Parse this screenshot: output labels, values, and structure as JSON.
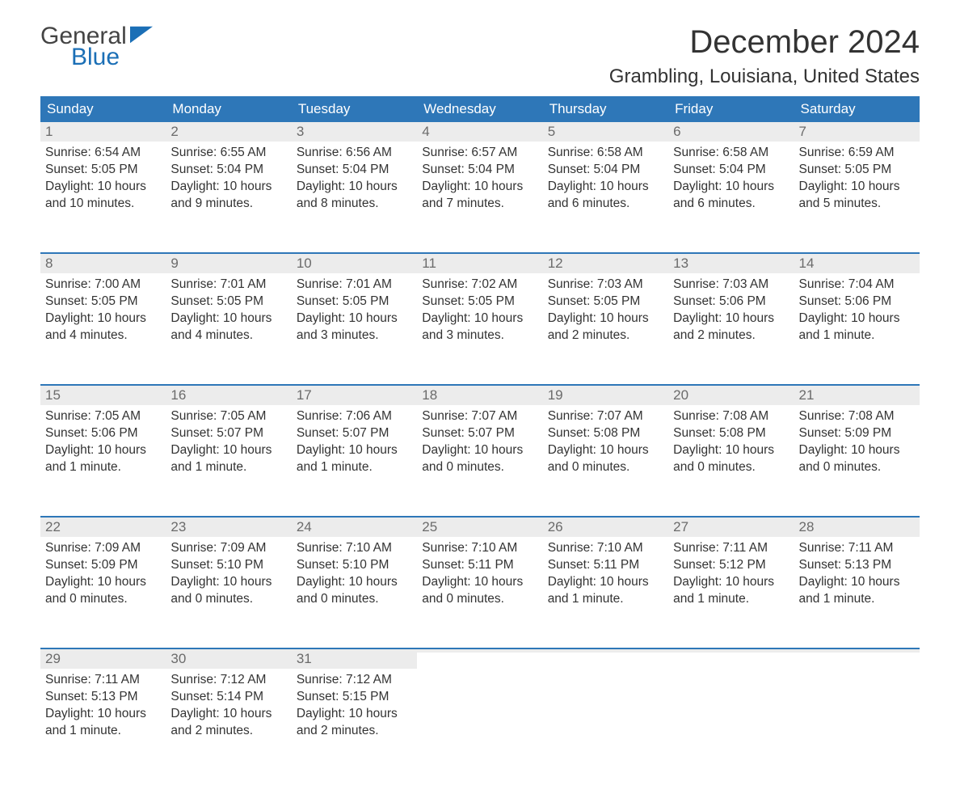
{
  "brand": {
    "word1": "General",
    "word2": "Blue",
    "word1_color": "#444444",
    "word2_color": "#1b6fb6",
    "mark_color": "#1b6fb6"
  },
  "title": "December 2024",
  "location": "Grambling, Louisiana, United States",
  "colors": {
    "header_bg": "#2e77b8",
    "header_text": "#ffffff",
    "daynum_bg": "#ececec",
    "daynum_text": "#6b6b6b",
    "body_text": "#333333",
    "row_divider": "#2e77b8",
    "page_bg": "#ffffff"
  },
  "typography": {
    "month_title_fontsize": 40,
    "location_fontsize": 24,
    "dayheader_fontsize": 17,
    "daynum_fontsize": 17,
    "cell_fontsize": 15.5,
    "font_family": "Arial"
  },
  "day_headers": [
    "Sunday",
    "Monday",
    "Tuesday",
    "Wednesday",
    "Thursday",
    "Friday",
    "Saturday"
  ],
  "weeks": [
    [
      {
        "n": "1",
        "sunrise": "Sunrise: 6:54 AM",
        "sunset": "Sunset: 5:05 PM",
        "dl1": "Daylight: 10 hours",
        "dl2": "and 10 minutes."
      },
      {
        "n": "2",
        "sunrise": "Sunrise: 6:55 AM",
        "sunset": "Sunset: 5:04 PM",
        "dl1": "Daylight: 10 hours",
        "dl2": "and 9 minutes."
      },
      {
        "n": "3",
        "sunrise": "Sunrise: 6:56 AM",
        "sunset": "Sunset: 5:04 PM",
        "dl1": "Daylight: 10 hours",
        "dl2": "and 8 minutes."
      },
      {
        "n": "4",
        "sunrise": "Sunrise: 6:57 AM",
        "sunset": "Sunset: 5:04 PM",
        "dl1": "Daylight: 10 hours",
        "dl2": "and 7 minutes."
      },
      {
        "n": "5",
        "sunrise": "Sunrise: 6:58 AM",
        "sunset": "Sunset: 5:04 PM",
        "dl1": "Daylight: 10 hours",
        "dl2": "and 6 minutes."
      },
      {
        "n": "6",
        "sunrise": "Sunrise: 6:58 AM",
        "sunset": "Sunset: 5:04 PM",
        "dl1": "Daylight: 10 hours",
        "dl2": "and 6 minutes."
      },
      {
        "n": "7",
        "sunrise": "Sunrise: 6:59 AM",
        "sunset": "Sunset: 5:05 PM",
        "dl1": "Daylight: 10 hours",
        "dl2": "and 5 minutes."
      }
    ],
    [
      {
        "n": "8",
        "sunrise": "Sunrise: 7:00 AM",
        "sunset": "Sunset: 5:05 PM",
        "dl1": "Daylight: 10 hours",
        "dl2": "and 4 minutes."
      },
      {
        "n": "9",
        "sunrise": "Sunrise: 7:01 AM",
        "sunset": "Sunset: 5:05 PM",
        "dl1": "Daylight: 10 hours",
        "dl2": "and 4 minutes."
      },
      {
        "n": "10",
        "sunrise": "Sunrise: 7:01 AM",
        "sunset": "Sunset: 5:05 PM",
        "dl1": "Daylight: 10 hours",
        "dl2": "and 3 minutes."
      },
      {
        "n": "11",
        "sunrise": "Sunrise: 7:02 AM",
        "sunset": "Sunset: 5:05 PM",
        "dl1": "Daylight: 10 hours",
        "dl2": "and 3 minutes."
      },
      {
        "n": "12",
        "sunrise": "Sunrise: 7:03 AM",
        "sunset": "Sunset: 5:05 PM",
        "dl1": "Daylight: 10 hours",
        "dl2": "and 2 minutes."
      },
      {
        "n": "13",
        "sunrise": "Sunrise: 7:03 AM",
        "sunset": "Sunset: 5:06 PM",
        "dl1": "Daylight: 10 hours",
        "dl2": "and 2 minutes."
      },
      {
        "n": "14",
        "sunrise": "Sunrise: 7:04 AM",
        "sunset": "Sunset: 5:06 PM",
        "dl1": "Daylight: 10 hours",
        "dl2": "and 1 minute."
      }
    ],
    [
      {
        "n": "15",
        "sunrise": "Sunrise: 7:05 AM",
        "sunset": "Sunset: 5:06 PM",
        "dl1": "Daylight: 10 hours",
        "dl2": "and 1 minute."
      },
      {
        "n": "16",
        "sunrise": "Sunrise: 7:05 AM",
        "sunset": "Sunset: 5:07 PM",
        "dl1": "Daylight: 10 hours",
        "dl2": "and 1 minute."
      },
      {
        "n": "17",
        "sunrise": "Sunrise: 7:06 AM",
        "sunset": "Sunset: 5:07 PM",
        "dl1": "Daylight: 10 hours",
        "dl2": "and 1 minute."
      },
      {
        "n": "18",
        "sunrise": "Sunrise: 7:07 AM",
        "sunset": "Sunset: 5:07 PM",
        "dl1": "Daylight: 10 hours",
        "dl2": "and 0 minutes."
      },
      {
        "n": "19",
        "sunrise": "Sunrise: 7:07 AM",
        "sunset": "Sunset: 5:08 PM",
        "dl1": "Daylight: 10 hours",
        "dl2": "and 0 minutes."
      },
      {
        "n": "20",
        "sunrise": "Sunrise: 7:08 AM",
        "sunset": "Sunset: 5:08 PM",
        "dl1": "Daylight: 10 hours",
        "dl2": "and 0 minutes."
      },
      {
        "n": "21",
        "sunrise": "Sunrise: 7:08 AM",
        "sunset": "Sunset: 5:09 PM",
        "dl1": "Daylight: 10 hours",
        "dl2": "and 0 minutes."
      }
    ],
    [
      {
        "n": "22",
        "sunrise": "Sunrise: 7:09 AM",
        "sunset": "Sunset: 5:09 PM",
        "dl1": "Daylight: 10 hours",
        "dl2": "and 0 minutes."
      },
      {
        "n": "23",
        "sunrise": "Sunrise: 7:09 AM",
        "sunset": "Sunset: 5:10 PM",
        "dl1": "Daylight: 10 hours",
        "dl2": "and 0 minutes."
      },
      {
        "n": "24",
        "sunrise": "Sunrise: 7:10 AM",
        "sunset": "Sunset: 5:10 PM",
        "dl1": "Daylight: 10 hours",
        "dl2": "and 0 minutes."
      },
      {
        "n": "25",
        "sunrise": "Sunrise: 7:10 AM",
        "sunset": "Sunset: 5:11 PM",
        "dl1": "Daylight: 10 hours",
        "dl2": "and 0 minutes."
      },
      {
        "n": "26",
        "sunrise": "Sunrise: 7:10 AM",
        "sunset": "Sunset: 5:11 PM",
        "dl1": "Daylight: 10 hours",
        "dl2": "and 1 minute."
      },
      {
        "n": "27",
        "sunrise": "Sunrise: 7:11 AM",
        "sunset": "Sunset: 5:12 PM",
        "dl1": "Daylight: 10 hours",
        "dl2": "and 1 minute."
      },
      {
        "n": "28",
        "sunrise": "Sunrise: 7:11 AM",
        "sunset": "Sunset: 5:13 PM",
        "dl1": "Daylight: 10 hours",
        "dl2": "and 1 minute."
      }
    ],
    [
      {
        "n": "29",
        "sunrise": "Sunrise: 7:11 AM",
        "sunset": "Sunset: 5:13 PM",
        "dl1": "Daylight: 10 hours",
        "dl2": "and 1 minute."
      },
      {
        "n": "30",
        "sunrise": "Sunrise: 7:12 AM",
        "sunset": "Sunset: 5:14 PM",
        "dl1": "Daylight: 10 hours",
        "dl2": "and 2 minutes."
      },
      {
        "n": "31",
        "sunrise": "Sunrise: 7:12 AM",
        "sunset": "Sunset: 5:15 PM",
        "dl1": "Daylight: 10 hours",
        "dl2": "and 2 minutes."
      },
      {
        "n": "",
        "sunrise": "",
        "sunset": "",
        "dl1": "",
        "dl2": ""
      },
      {
        "n": "",
        "sunrise": "",
        "sunset": "",
        "dl1": "",
        "dl2": ""
      },
      {
        "n": "",
        "sunrise": "",
        "sunset": "",
        "dl1": "",
        "dl2": ""
      },
      {
        "n": "",
        "sunrise": "",
        "sunset": "",
        "dl1": "",
        "dl2": ""
      }
    ]
  ]
}
